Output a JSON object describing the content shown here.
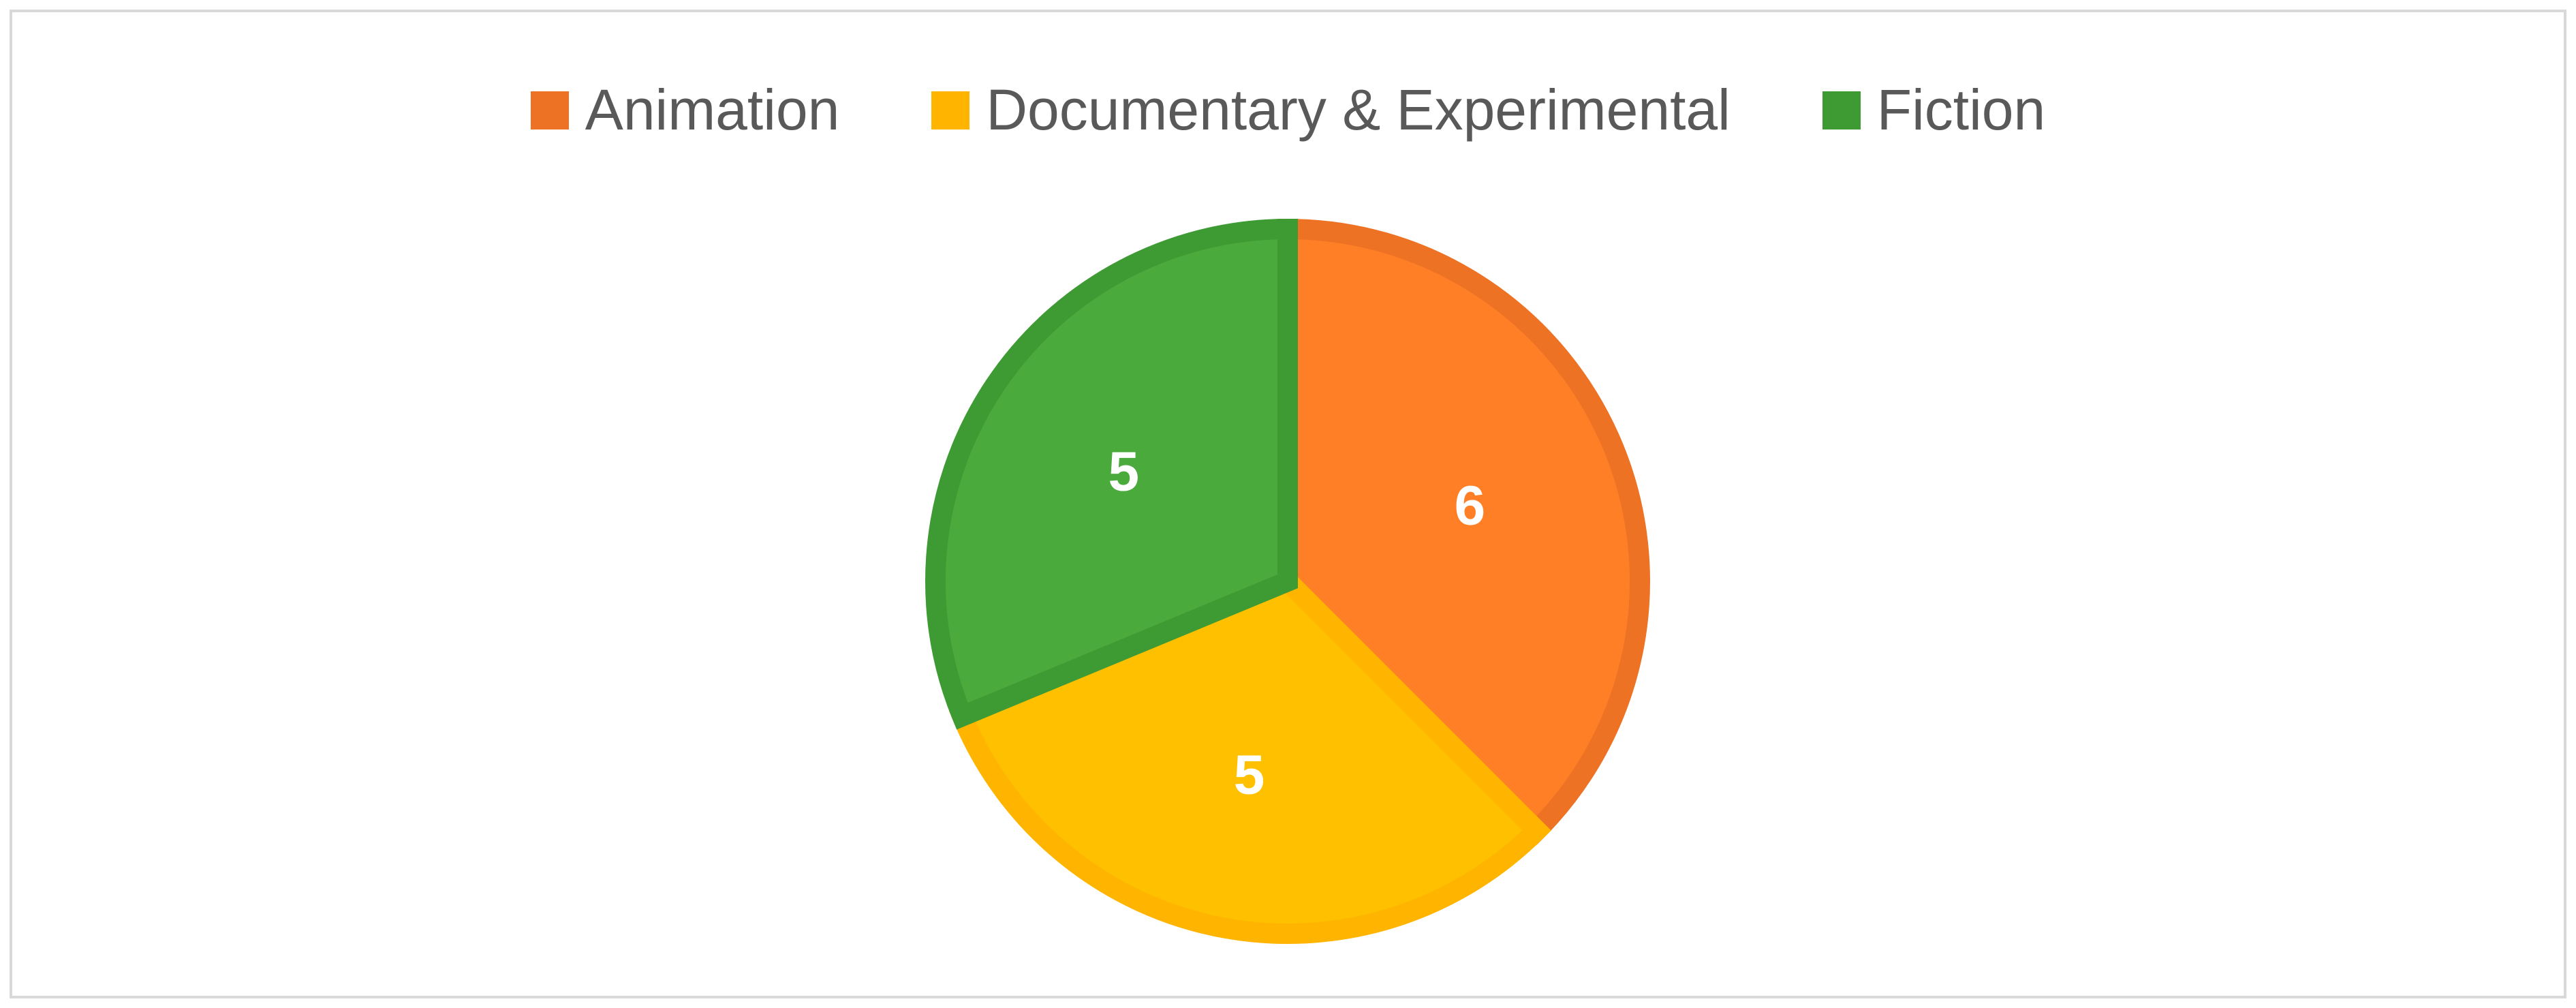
{
  "chart_data": {
    "type": "pie",
    "categories": [
      "Animation",
      "Documentary & Experimental",
      "Fiction"
    ],
    "values": [
      6,
      5,
      5
    ],
    "data_labels": [
      "6",
      "5",
      "5"
    ],
    "colors": {
      "fill": [
        "#ff7f27",
        "#ffc000",
        "#4aab3c"
      ],
      "border": [
        "#ee7224",
        "#ffb400",
        "#3e9b34"
      ]
    },
    "start_angle": "12 o'clock, clockwise",
    "legend": "top"
  }
}
